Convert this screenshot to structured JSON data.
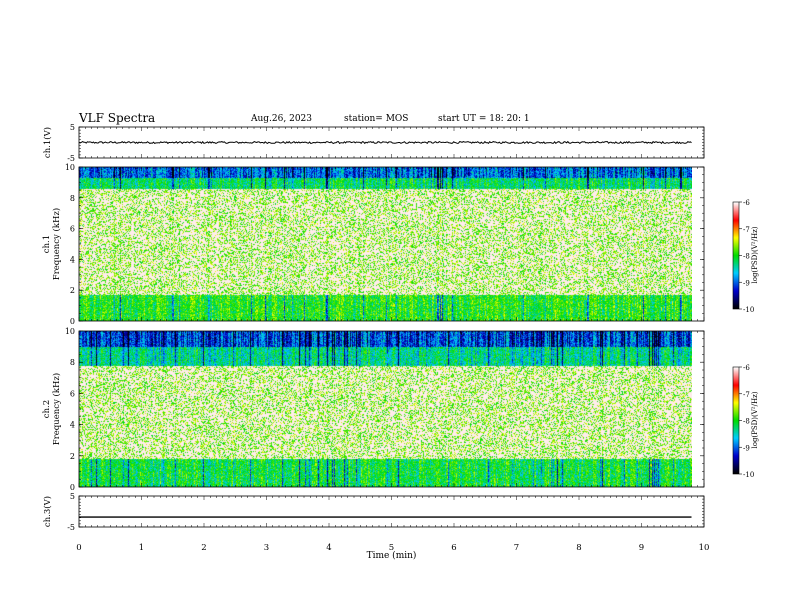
{
  "header": {
    "title": "VLF Spectra",
    "date": "Aug.26, 2023",
    "station": "station= MOS",
    "start": "start  UT =   18: 20: 1"
  },
  "colorbar": {
    "label": "log(PSD)(V²/Hz)",
    "ticks": [
      "-6",
      "-7",
      "-8",
      "-9",
      "-10"
    ],
    "colors": [
      "#ffffff",
      "#ff0000",
      "#ffff00",
      "#00dd00",
      "#00ccff",
      "#0000cc",
      "#000000"
    ]
  },
  "chart_data": {
    "type": "heatmap",
    "xlabel": "Time  (min)",
    "xlim": [
      0,
      10
    ],
    "xticks": [
      "0",
      "1",
      "2",
      "3",
      "4",
      "5",
      "6",
      "7",
      "8",
      "9",
      "10"
    ],
    "data_end_min": 9.8,
    "panels": [
      {
        "id": "ch1-voltage",
        "type": "line",
        "ylabel": "ch.1(V)",
        "ylim": [
          -5,
          5
        ],
        "yticks": [
          "5",
          "-5"
        ],
        "level": 0,
        "noise": 0.3
      },
      {
        "id": "ch1-spectrogram",
        "type": "heatmap",
        "ylabel": "ch.1\nFrequency (kHz)",
        "ylim": [
          0,
          10
        ],
        "yticks": [
          "0",
          "2",
          "4",
          "6",
          "8",
          "10"
        ],
        "bands_khz": [
          [
            0,
            1.7,
            0.8
          ],
          [
            8.6,
            10,
            0.9
          ],
          [
            9.3,
            10,
            1.2
          ]
        ],
        "background": 0.15
      },
      {
        "id": "ch2-spectrogram",
        "type": "heatmap",
        "ylabel": "ch.2\nFrequency (kHz)",
        "ylim": [
          0,
          10
        ],
        "yticks": [
          "0",
          "2",
          "4",
          "6",
          "8",
          "10"
        ],
        "bands_khz": [
          [
            0,
            1.8,
            0.85
          ],
          [
            7.8,
            10,
            0.95
          ],
          [
            9.0,
            10,
            1.25
          ]
        ],
        "background": 0.18
      },
      {
        "id": "ch3-voltage",
        "type": "line",
        "ylabel": "ch.3(V)",
        "ylim": [
          -5,
          5
        ],
        "yticks": [
          "5",
          "-5"
        ],
        "level": -1.8,
        "noise": 0.0
      }
    ]
  }
}
